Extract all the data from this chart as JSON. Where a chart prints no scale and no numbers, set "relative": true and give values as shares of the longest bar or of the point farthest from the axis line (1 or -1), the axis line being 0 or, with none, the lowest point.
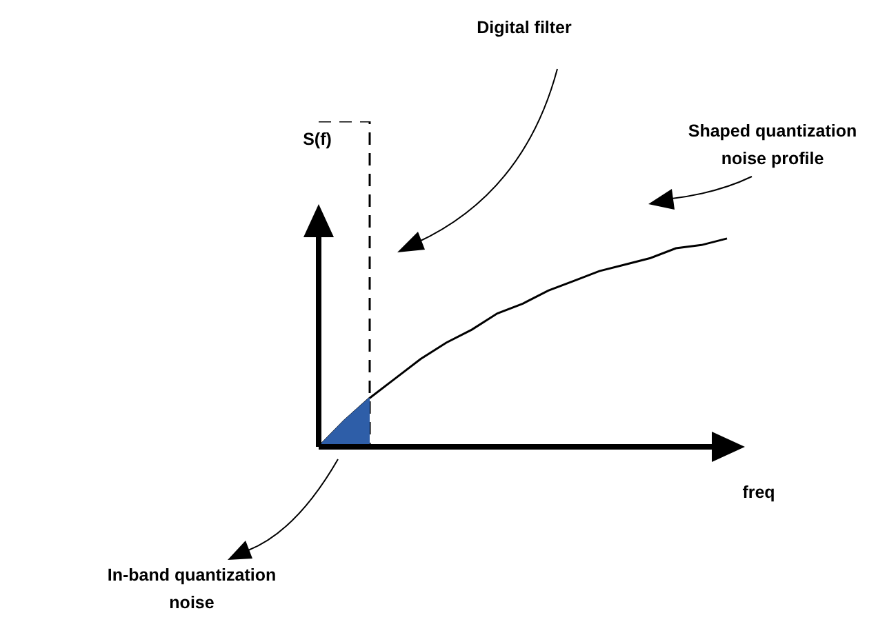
{
  "chart_data": {
    "type": "line",
    "relative": true,
    "xlabel": "freq",
    "ylabel": "S(f)",
    "categories": [
      null,
      null,
      null,
      null,
      null,
      null,
      null,
      null,
      null,
      null,
      null,
      null,
      null,
      null,
      null,
      null,
      null
    ],
    "annotations": [
      "Shaped quantization noise profile",
      "Digital filter",
      "In-band quantization noise"
    ],
    "series": [
      {
        "type": "line",
        "color": "#000000",
        "values": [
          0,
          0.08,
          0.15,
          0.21,
          0.27,
          0.32,
          0.36,
          0.41,
          0.44,
          0.48,
          0.51,
          0.54,
          0.56,
          0.58,
          0.61,
          0.62,
          0.64
        ]
      },
      {
        "type": "step",
        "color": "#000000",
        "line_style": "dashed",
        "values": [
          1,
          1,
          0,
          null,
          null,
          null,
          null,
          null,
          null,
          null,
          null,
          null,
          null,
          null,
          null,
          null,
          null
        ]
      },
      {
        "type": "area",
        "color": "#2e5ea8",
        "values": [
          0,
          0.08,
          0.15,
          null,
          null,
          null,
          null,
          null,
          null,
          null,
          null,
          null,
          null,
          null,
          null,
          null,
          null
        ]
      }
    ]
  }
}
